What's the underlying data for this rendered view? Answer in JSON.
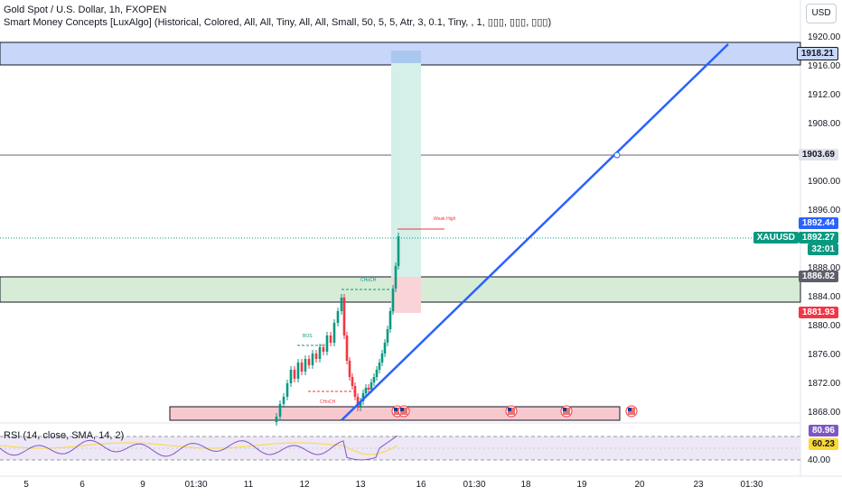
{
  "header": {
    "symbol_line": "Gold Spot / U.S. Dollar, 1h, FXOPEN",
    "indicator_line": "Smart Money Concepts [LuxAlgo] (Historical, Colored, All, All, Tiny, All, All, Small, 50, 5, 5, Atr, 3, 0.1, Tiny, , 1, ▯▯▯, ▯▯▯, ▯▯▯)"
  },
  "currency_button": "USD",
  "price_axis": {
    "ticks": [
      "1920.00",
      "1916.00",
      "1912.00",
      "1908.00",
      "1900.00",
      "1896.00",
      "1888.00",
      "1884.00",
      "1880.00",
      "1876.00",
      "1872.00",
      "1868.00"
    ]
  },
  "price_labels": {
    "zone_top": "1918.21",
    "level_mid": "1903.69",
    "ask": "1892.44",
    "symbol": "XAUUSD",
    "last": "1892.27",
    "countdown": "32:01",
    "zone_bottom": "1886.82",
    "stop": "1881.93"
  },
  "colors": {
    "bull": "#089981",
    "bear": "#f23645",
    "trendline": "#2962ff",
    "supply_zone": "#c7d6f9",
    "demand_zone": "#d6ecd6",
    "rsi": "#7e57c2",
    "rsi_sma": "#fdd835"
  },
  "annotations": {
    "weak_high": "Weak High",
    "bos": "BOS",
    "choch_upper": "CHoCH",
    "choch_lower": "CHoCH"
  },
  "rsi": {
    "title": "RSI (14, close, SMA, 14, 2)",
    "value": "80.96",
    "sma_value": "60.23",
    "level": "40.00"
  },
  "time_axis": [
    "5",
    "6",
    "9",
    "01:30",
    "11",
    "12",
    "13",
    "16",
    "01:30",
    "18",
    "19",
    "20",
    "23",
    "01:30"
  ]
}
